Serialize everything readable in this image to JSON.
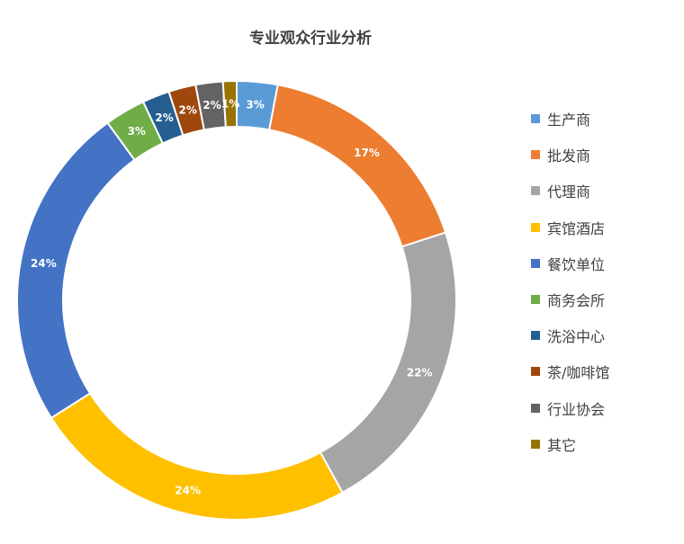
{
  "chart_data": {
    "type": "pie",
    "variant": "donut",
    "title": "专业观众行业分析",
    "legend_position": "right",
    "categories": [
      "生产商",
      "批发商",
      "代理商",
      "宾馆酒店",
      "餐饮单位",
      "商务会所",
      "洗浴中心",
      "茶/咖啡馆",
      "行业协会",
      "其它"
    ],
    "values": [
      3,
      17,
      22,
      24,
      24,
      3,
      2,
      2,
      2,
      1
    ],
    "labels": [
      "3%",
      "17%",
      "22%",
      "24%",
      "24%",
      "3%",
      "2%",
      "2%",
      "2%",
      "1%"
    ],
    "colors": [
      "#5B9BD5",
      "#ED7D31",
      "#A5A5A5",
      "#FFC000",
      "#4472C4",
      "#70AD47",
      "#255E91",
      "#9E480E",
      "#636363",
      "#997300"
    ]
  }
}
